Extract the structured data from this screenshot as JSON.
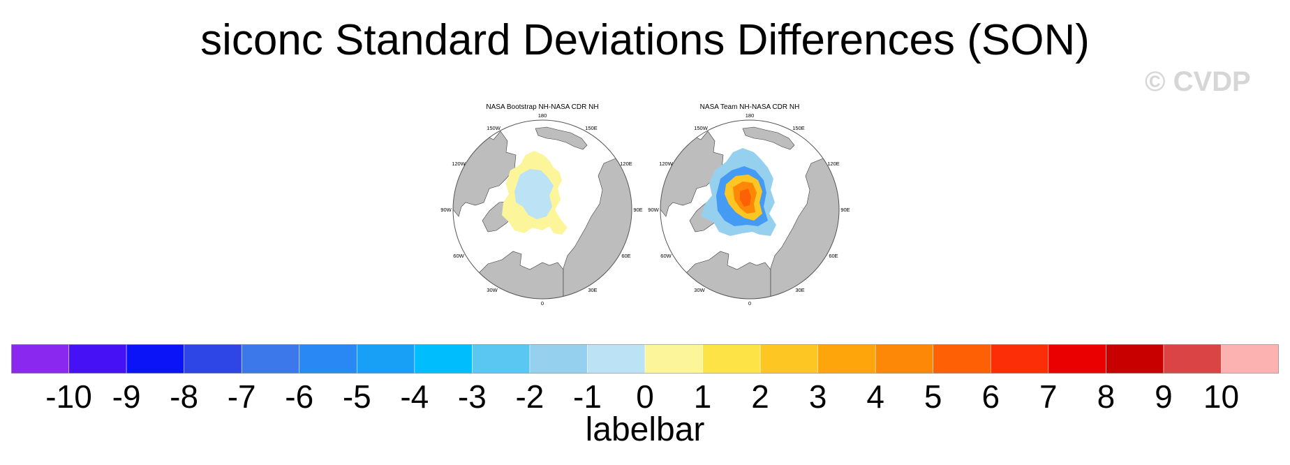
{
  "title": "siconc Standard Deviations Differences (SON)",
  "watermark": "© CVDP",
  "panels": [
    {
      "title": "NASA Bootstrap NH-NASA CDR NH",
      "lon_labels": [
        "180",
        "150E",
        "120E",
        "90E",
        "60E",
        "30E",
        "0",
        "30W",
        "60W",
        "90W",
        "120W",
        "150W"
      ]
    },
    {
      "title": "NASA Team NH-NASA CDR NH",
      "lon_labels": [
        "180",
        "150E",
        "120E",
        "90E",
        "60E",
        "30E",
        "0",
        "30W",
        "60W",
        "90W",
        "120W",
        "150W"
      ]
    }
  ],
  "colors": {
    "land": "#bdbdbd",
    "ocean": "#ffffff",
    "coast": "#3a3a3a"
  },
  "labelbar": {
    "caption": "labelbar",
    "ticks": [
      "-10",
      "-9",
      "-8",
      "-7",
      "-6",
      "-5",
      "-4",
      "-3",
      "-2",
      "-1",
      "0",
      "1",
      "2",
      "3",
      "4",
      "5",
      "6",
      "7",
      "8",
      "9",
      "10"
    ],
    "colors": [
      "#8a28f0",
      "#4612f5",
      "#0a14f6",
      "#2e46e6",
      "#3c78ea",
      "#2a88f5",
      "#18a0f7",
      "#00befd",
      "#5ac6f2",
      "#96d0ef",
      "#bce2f6",
      "#fdf59a",
      "#fde346",
      "#fdc623",
      "#fda50b",
      "#fd8808",
      "#fd6005",
      "#fc2e07",
      "#eb0000",
      "#c90000",
      "#db4444",
      "#fdb2b2"
    ]
  }
}
